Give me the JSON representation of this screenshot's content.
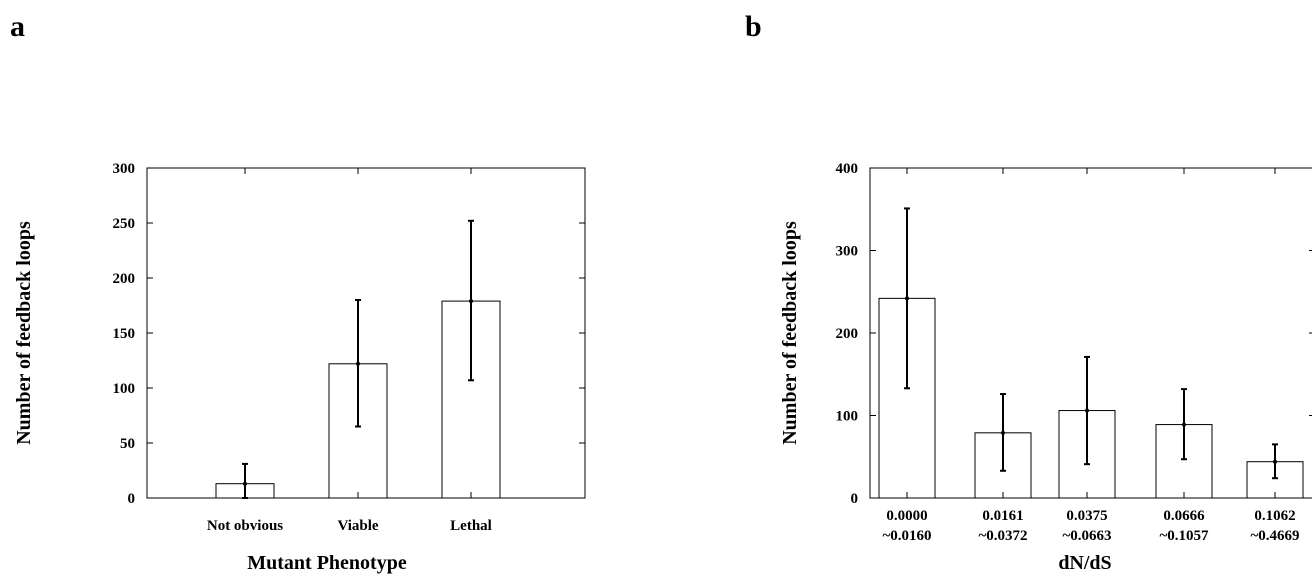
{
  "chart_data": [
    {
      "panel": "a",
      "type": "bar",
      "xlabel": "Mutant Phenotype",
      "ylabel": "Number of feedback loops",
      "ylim": [
        0,
        300
      ],
      "yticks": [
        0,
        50,
        100,
        150,
        200,
        250,
        300
      ],
      "categories": [
        "Not obvious",
        "Viable",
        "Lethal"
      ],
      "values": [
        13,
        122,
        179
      ],
      "error_low": [
        0,
        65,
        107
      ],
      "error_high": [
        31,
        180,
        252
      ],
      "grid": false
    },
    {
      "panel": "b",
      "type": "bar",
      "xlabel": "dN/dS",
      "ylabel": "Number of feedback loops",
      "ylim": [
        0,
        400
      ],
      "yticks": [
        0,
        100,
        200,
        300,
        400
      ],
      "categories": [
        [
          "0.0000",
          "~0.0160"
        ],
        [
          "0.0161",
          "~0.0372"
        ],
        [
          "0.0375",
          "~0.0663"
        ],
        [
          "0.0666",
          "~0.1057"
        ],
        [
          "0.1062",
          "~0.4669"
        ]
      ],
      "values": [
        242,
        79,
        106,
        89,
        44
      ],
      "error_low": [
        133,
        33,
        41,
        47,
        24
      ],
      "error_high": [
        351,
        126,
        171,
        132,
        65
      ],
      "grid": false
    }
  ]
}
